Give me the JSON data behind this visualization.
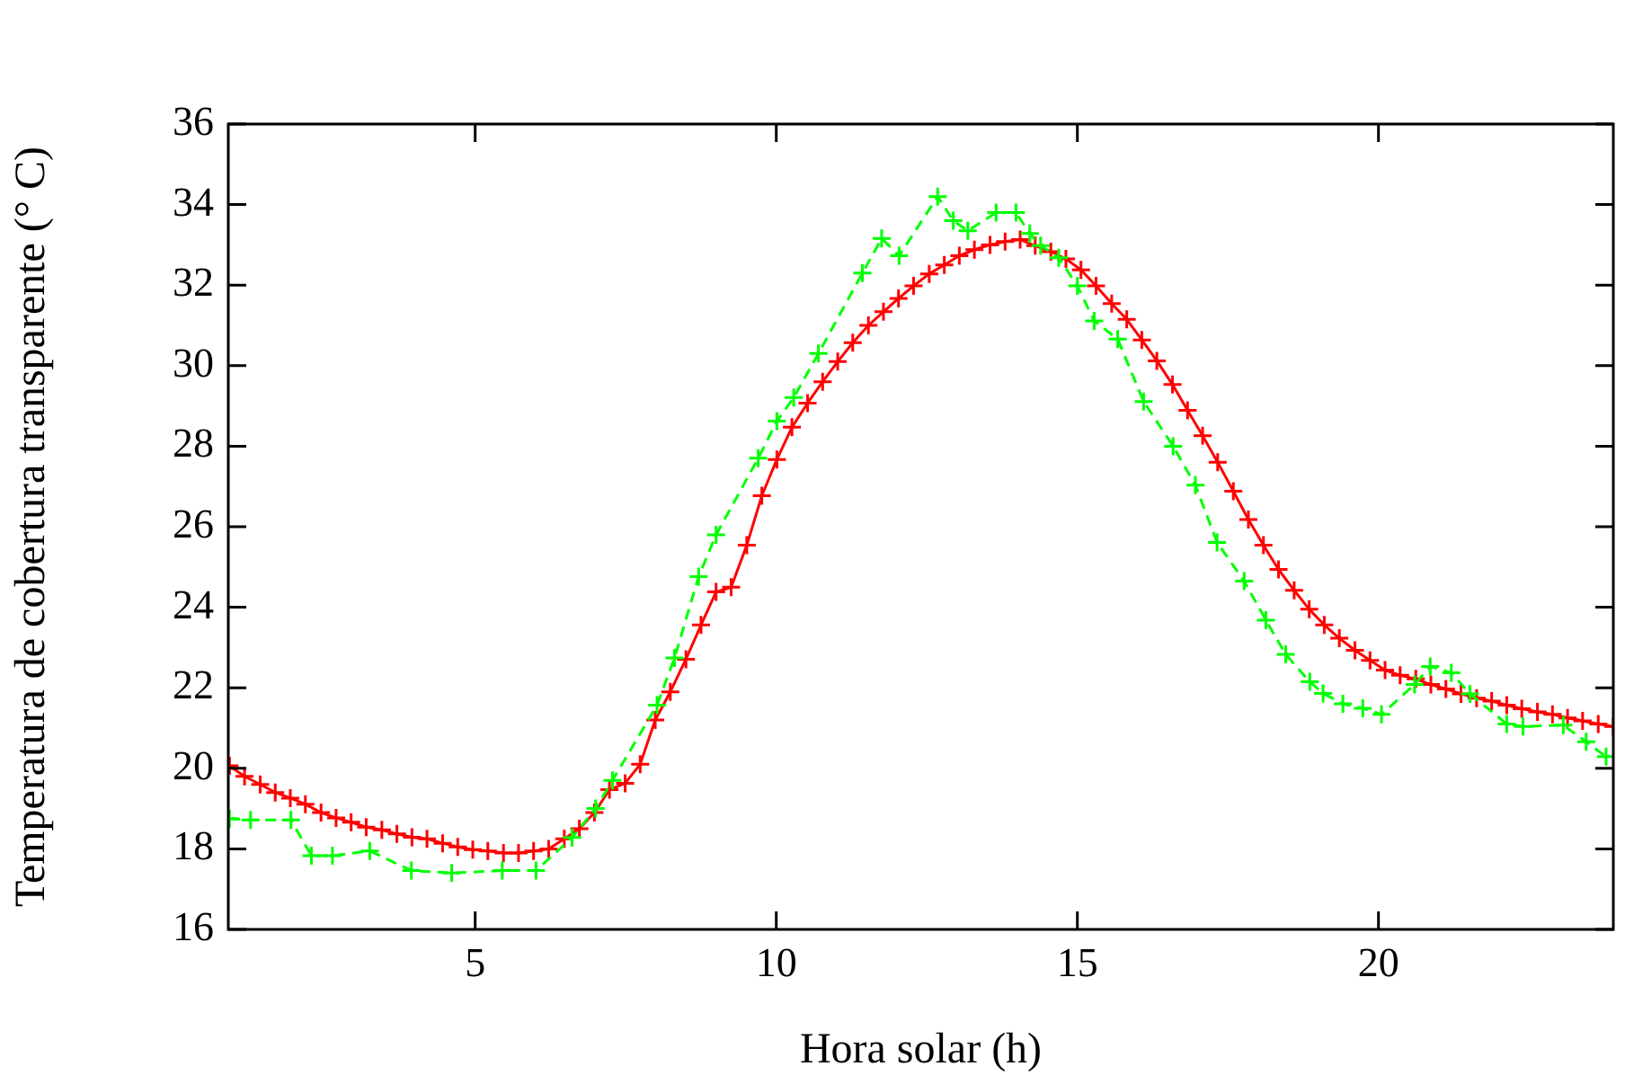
{
  "chart_data": {
    "type": "line",
    "xlabel": "Hora solar (h)",
    "ylabel": "Temperatura de cobertura transparente (° C)",
    "xlim": [
      0.9,
      23.9
    ],
    "xticks": [
      5,
      10,
      15,
      20
    ],
    "ylim": [
      16,
      36
    ],
    "yticks": [
      16,
      18,
      20,
      22,
      24,
      26,
      28,
      30,
      32,
      34,
      36
    ],
    "grid": false,
    "legend": false,
    "series": [
      {
        "color": "#ff0000",
        "marker": "cross",
        "line_style": "solid",
        "x": [
          0.92,
          1.17,
          1.43,
          1.68,
          1.93,
          2.18,
          2.44,
          2.69,
          2.94,
          3.19,
          3.45,
          3.7,
          3.95,
          4.2,
          4.46,
          4.71,
          4.96,
          5.21,
          5.47,
          5.72,
          5.97,
          6.22,
          6.48,
          6.73,
          6.98,
          7.23,
          7.49,
          7.74,
          7.99,
          8.24,
          8.5,
          8.75,
          9.0,
          9.25,
          9.51,
          9.76,
          10.01,
          10.26,
          10.52,
          10.77,
          11.02,
          11.27,
          11.53,
          11.78,
          12.03,
          12.28,
          12.54,
          12.79,
          13.04,
          13.29,
          13.55,
          13.8,
          14.05,
          14.3,
          14.56,
          14.81,
          15.06,
          15.31,
          15.57,
          15.82,
          16.07,
          16.32,
          16.58,
          16.83,
          17.08,
          17.33,
          17.59,
          17.84,
          18.09,
          18.34,
          18.6,
          18.85,
          19.1,
          19.35,
          19.61,
          19.86,
          20.11,
          20.36,
          20.62,
          20.87,
          21.12,
          21.37,
          21.63,
          21.88,
          22.13,
          22.38,
          22.64,
          22.89,
          23.14,
          23.39,
          23.65,
          23.9
        ],
        "values": [
          20.06,
          19.8,
          19.6,
          19.4,
          19.26,
          19.11,
          18.9,
          18.77,
          18.66,
          18.54,
          18.47,
          18.37,
          18.29,
          18.25,
          18.14,
          18.05,
          17.98,
          17.95,
          17.9,
          17.9,
          17.95,
          18.0,
          18.25,
          18.5,
          18.9,
          19.47,
          19.63,
          20.1,
          21.2,
          21.9,
          22.71,
          23.56,
          24.38,
          24.5,
          25.54,
          26.77,
          27.67,
          28.47,
          29.07,
          29.6,
          30.1,
          30.57,
          31.0,
          31.34,
          31.67,
          31.98,
          32.28,
          32.5,
          32.73,
          32.88,
          33.0,
          33.08,
          33.13,
          32.98,
          32.83,
          32.65,
          32.38,
          31.98,
          31.54,
          31.15,
          30.64,
          30.12,
          29.53,
          28.89,
          28.26,
          27.6,
          26.88,
          26.18,
          25.54,
          24.94,
          24.42,
          23.95,
          23.56,
          23.23,
          22.93,
          22.68,
          22.44,
          22.31,
          22.22,
          22.08,
          21.97,
          21.85,
          21.74,
          21.67,
          21.57,
          21.48,
          21.4,
          21.34,
          21.25,
          21.18,
          21.1,
          21.04
        ]
      },
      {
        "color": "#00ff00",
        "marker": "cross",
        "line_style": "dashed",
        "x": [
          0.92,
          1.27,
          1.94,
          2.28,
          2.63,
          3.25,
          3.94,
          4.61,
          5.45,
          6.01,
          6.61,
          7.0,
          7.28,
          8.02,
          8.31,
          8.71,
          9.0,
          9.7,
          10.01,
          10.29,
          10.7,
          11.43,
          11.75,
          12.04,
          12.68,
          12.94,
          13.18,
          13.65,
          13.98,
          14.21,
          14.39,
          14.69,
          15.0,
          15.28,
          15.67,
          16.1,
          16.59,
          16.96,
          17.32,
          17.77,
          18.13,
          18.46,
          18.86,
          19.08,
          19.41,
          19.74,
          20.05,
          20.6,
          20.86,
          21.21,
          21.52,
          22.13,
          22.4,
          23.07,
          23.45,
          23.78
        ],
        "values": [
          18.75,
          18.72,
          18.72,
          17.83,
          17.83,
          17.95,
          17.46,
          17.4,
          17.46,
          17.46,
          18.28,
          19.0,
          19.7,
          21.57,
          22.74,
          24.76,
          25.8,
          27.7,
          28.62,
          29.21,
          30.3,
          32.3,
          33.16,
          32.73,
          34.2,
          33.6,
          33.35,
          33.8,
          33.8,
          33.28,
          32.98,
          32.68,
          31.98,
          31.11,
          30.66,
          29.11,
          28.0,
          27.03,
          25.61,
          24.65,
          23.68,
          22.83,
          22.15,
          21.86,
          21.6,
          21.49,
          21.34,
          22.08,
          22.53,
          22.37,
          21.85,
          21.1,
          21.04,
          21.07,
          20.66,
          20.29
        ]
      }
    ]
  }
}
